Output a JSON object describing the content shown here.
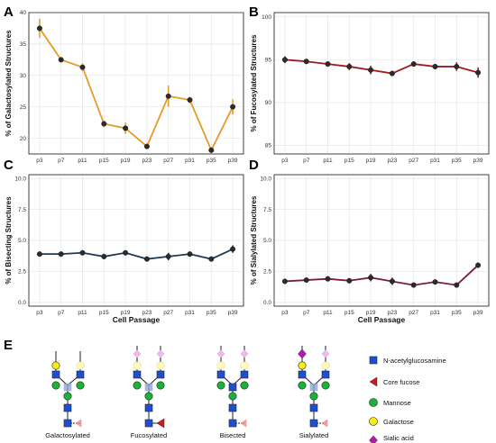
{
  "chart_data": [
    {
      "panel": "A",
      "type": "line",
      "ylabel": "% of Galactosylated Structures",
      "xlabel": "",
      "color": "#E69A2A",
      "categories": [
        "p3",
        "p7",
        "p11",
        "p15",
        "p19",
        "p23",
        "p27",
        "p31",
        "p35",
        "p39"
      ],
      "values": [
        37.5,
        32.5,
        31.3,
        22.3,
        21.6,
        18.7,
        26.7,
        26.1,
        18.1,
        25.0
      ],
      "errors": [
        1.5,
        0.3,
        0.6,
        0.5,
        0.9,
        0.3,
        1.7,
        0.5,
        0.5,
        1.2
      ],
      "ylim": [
        17.5,
        40
      ],
      "yticks": [
        "20",
        "25",
        "30",
        "35",
        "40"
      ],
      "grid": true
    },
    {
      "panel": "B",
      "type": "line",
      "ylabel": "% of Fucosylated Structures",
      "xlabel": "",
      "color": "#A3191E",
      "categories": [
        "p3",
        "p7",
        "p11",
        "p15",
        "p19",
        "p23",
        "p27",
        "p31",
        "p35",
        "p39"
      ],
      "values": [
        95.0,
        94.8,
        94.5,
        94.2,
        93.8,
        93.4,
        94.5,
        94.2,
        94.2,
        93.5
      ],
      "errors": [
        0.4,
        0.2,
        0.2,
        0.4,
        0.5,
        0.2,
        0.3,
        0.3,
        0.5,
        0.6
      ],
      "ylim": [
        84,
        100.5
      ],
      "yticks": [
        "85",
        "90",
        "95",
        "100"
      ],
      "grid": true
    },
    {
      "panel": "C",
      "type": "line",
      "ylabel": "% of Bisecting Structures",
      "xlabel": "Cell Passage",
      "color": "#1F3B57",
      "categories": [
        "p3",
        "p7",
        "p11",
        "p15",
        "p19",
        "p23",
        "p27",
        "p31",
        "p35",
        "p39"
      ],
      "values": [
        3.9,
        3.9,
        4.0,
        3.7,
        4.0,
        3.5,
        3.7,
        3.9,
        3.5,
        4.3
      ],
      "errors": [
        0.2,
        0.1,
        0.15,
        0.2,
        0.2,
        0.1,
        0.3,
        0.15,
        0.1,
        0.3
      ],
      "ylim": [
        -0.3,
        10.3
      ],
      "yticks": [
        "0.0",
        "2.5",
        "5.0",
        "7.5",
        "10.0"
      ],
      "grid": true
    },
    {
      "panel": "D",
      "type": "line",
      "ylabel": "% of Sialylated Structures",
      "xlabel": "Cell Passage",
      "color": "#7A1E3C",
      "categories": [
        "p3",
        "p7",
        "p11",
        "p15",
        "p19",
        "p23",
        "p27",
        "p31",
        "p35",
        "p39"
      ],
      "values": [
        1.7,
        1.8,
        1.9,
        1.75,
        2.0,
        1.7,
        1.4,
        1.65,
        1.4,
        3.0
      ],
      "errors": [
        0.1,
        0.15,
        0.1,
        0.2,
        0.3,
        0.3,
        0.1,
        0.1,
        0.1,
        0.2
      ],
      "ylim": [
        -0.3,
        10.3
      ],
      "yticks": [
        "0.0",
        "2.5",
        "5.0",
        "7.5",
        "10.0"
      ],
      "grid": true
    }
  ],
  "figure": {
    "panel_e_letter": "E",
    "glycans": [
      {
        "key": "galactosylated",
        "label": "Galactosylated"
      },
      {
        "key": "fucosylated",
        "label": "Fucosylated"
      },
      {
        "key": "bisected",
        "label": "Bisected"
      },
      {
        "key": "sialylated",
        "label": "Sialylated"
      }
    ],
    "legend": [
      {
        "symbol": "blue-square",
        "label": "N-acetylglucosamine",
        "color": "#1F4FD1"
      },
      {
        "symbol": "red-triangle",
        "label": "Core fucose",
        "color": "#D61A1A"
      },
      {
        "symbol": "green-circle",
        "label": "Mannose",
        "color": "#19B33A"
      },
      {
        "symbol": "yellow-circle",
        "label": "Galactose",
        "color": "#F7EC18"
      },
      {
        "symbol": "magenta-diamond",
        "label": "Sialic acid",
        "color": "#B517B3"
      }
    ]
  }
}
